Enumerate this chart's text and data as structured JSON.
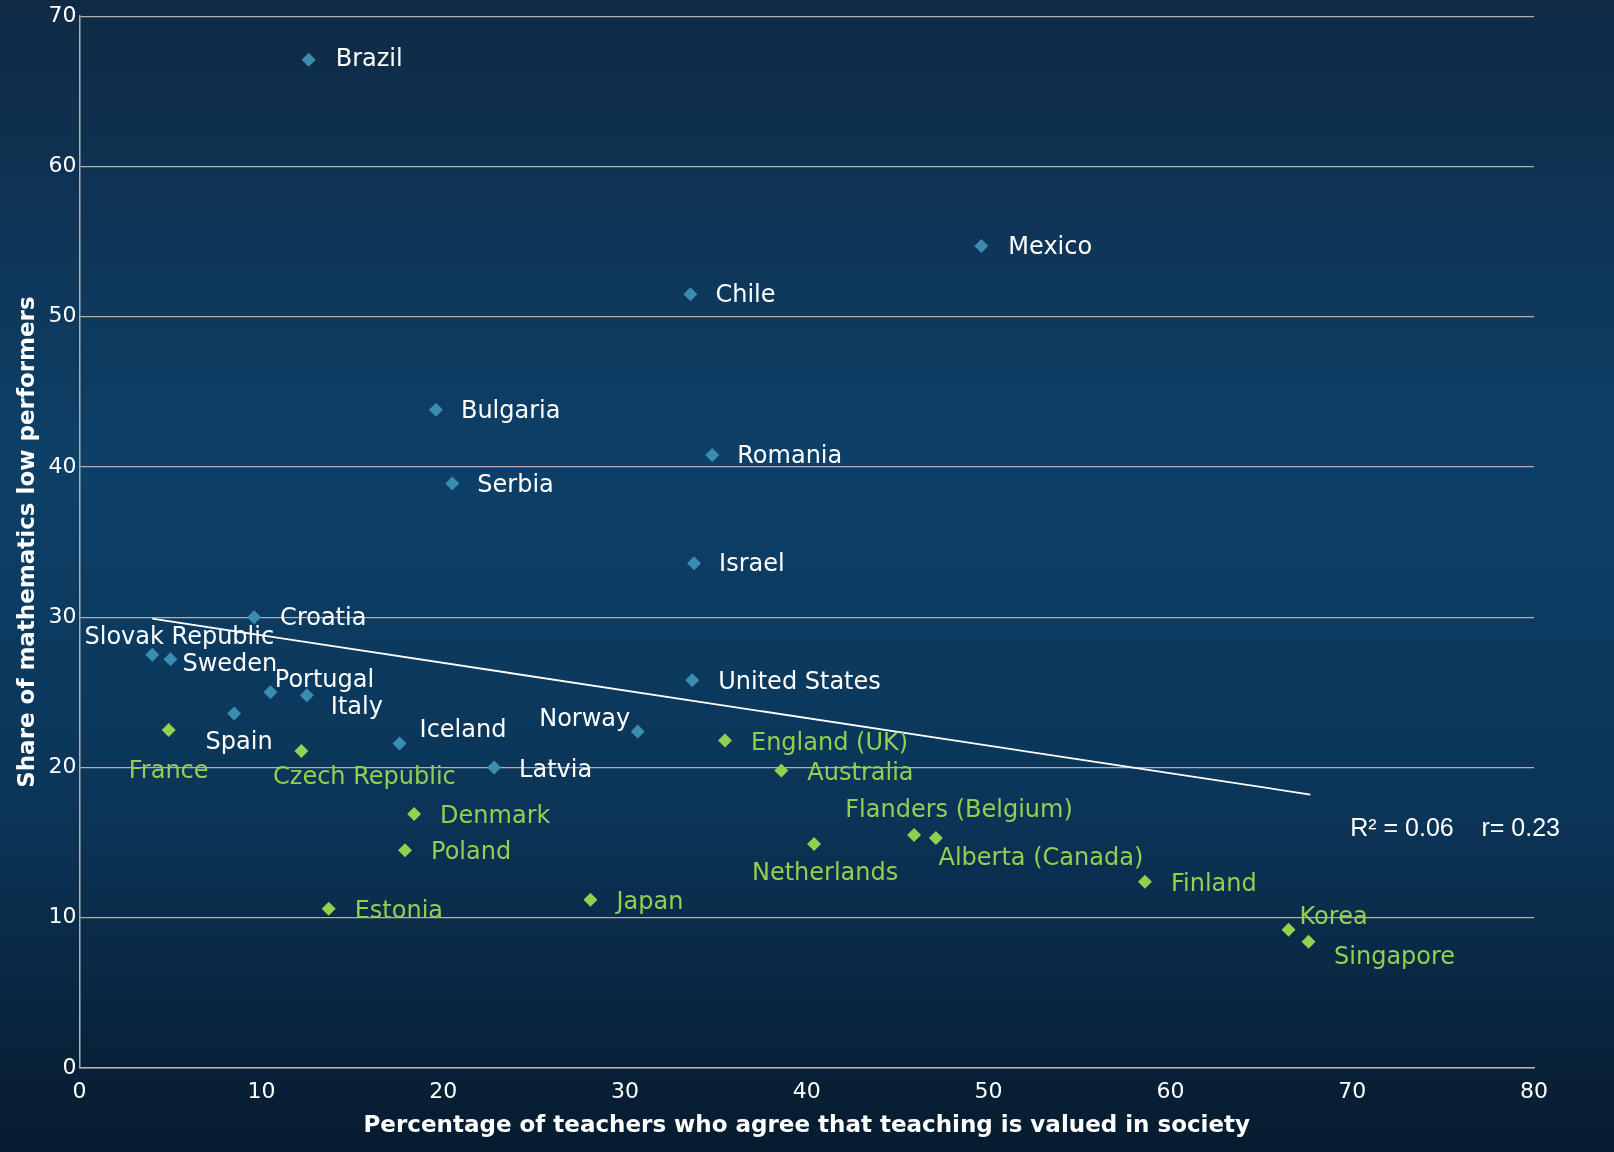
{
  "chart_data": {
    "type": "scatter",
    "xlabel": "Percentage of teachers who agree that teaching is valued in society",
    "ylabel": "Share of mathematics low performers",
    "xlim": [
      0,
      80
    ],
    "xticks": [
      0,
      10,
      20,
      30,
      40,
      50,
      60,
      70,
      80
    ],
    "ylim": [
      0,
      70
    ],
    "yticks": [
      0,
      10,
      20,
      30,
      40,
      50,
      60,
      70
    ],
    "grid": "y",
    "legend": false,
    "marker": "diamond",
    "series": [
      {
        "color": "#3a8db0",
        "x": [
          12.6,
          49.6,
          33.6,
          19.6,
          34.8,
          20.5,
          33.8,
          9.6,
          4.0,
          5.0,
          10.5,
          12.5,
          8.5,
          33.7,
          30.7,
          17.6,
          22.8
        ],
        "values": [
          67.1,
          54.7,
          51.5,
          43.8,
          40.8,
          38.9,
          33.6,
          30.0,
          27.5,
          27.2,
          25.0,
          24.8,
          23.6,
          25.8,
          22.4,
          21.6,
          20.0
        ]
      },
      {
        "color": "#92d050",
        "x": [
          4.9,
          12.2,
          35.5,
          38.6,
          18.4,
          17.9,
          13.7,
          28.1,
          40.4,
          45.9,
          47.1,
          58.6,
          66.5,
          67.6
        ],
        "values": [
          22.5,
          21.1,
          21.8,
          19.8,
          16.9,
          14.5,
          10.6,
          11.2,
          14.9,
          15.5,
          15.3,
          12.4,
          9.2,
          8.4
        ]
      },
      {
        "type": "line",
        "color": "#ffffff",
        "marker": "none",
        "x": [
          4.0,
          67.7
        ],
        "values": [
          29.9,
          18.2
        ]
      }
    ],
    "annotations": [
      {
        "text": "Brazil",
        "x": 12.6,
        "y": 67.1
      },
      {
        "text": "Mexico",
        "x": 49.6,
        "y": 54.7
      },
      {
        "text": "Chile",
        "x": 33.6,
        "y": 51.5
      },
      {
        "text": "Bulgaria",
        "x": 19.6,
        "y": 43.8
      },
      {
        "text": "Romania",
        "x": 34.8,
        "y": 40.8
      },
      {
        "text": "Serbia",
        "x": 20.5,
        "y": 38.9
      },
      {
        "text": "Israel",
        "x": 33.8,
        "y": 33.6
      },
      {
        "text": "Croatia",
        "x": 9.6,
        "y": 30.0
      },
      {
        "text": "Slovak Republic",
        "x": 4.0,
        "y": 27.5
      },
      {
        "text": "Sweden",
        "x": 5.0,
        "y": 27.2
      },
      {
        "text": "Portugal",
        "x": 10.5,
        "y": 25.0
      },
      {
        "text": "Italy",
        "x": 12.5,
        "y": 24.8
      },
      {
        "text": "Spain",
        "x": 8.5,
        "y": 23.6
      },
      {
        "text": "United States",
        "x": 33.7,
        "y": 25.8
      },
      {
        "text": "Norway",
        "x": 30.7,
        "y": 22.4
      },
      {
        "text": "Iceland",
        "x": 17.6,
        "y": 21.6
      },
      {
        "text": "Latvia",
        "x": 22.8,
        "y": 20.0
      },
      {
        "text": "France",
        "x": 4.9,
        "y": 22.5
      },
      {
        "text": "Czech Republic",
        "x": 12.2,
        "y": 21.1
      },
      {
        "text": "England (UK)",
        "x": 35.5,
        "y": 21.8
      },
      {
        "text": "Australia",
        "x": 38.6,
        "y": 19.8
      },
      {
        "text": "Denmark",
        "x": 18.4,
        "y": 16.9
      },
      {
        "text": "Poland",
        "x": 17.9,
        "y": 14.5
      },
      {
        "text": "Estonia",
        "x": 13.7,
        "y": 10.6
      },
      {
        "text": "Japan",
        "x": 28.1,
        "y": 11.2
      },
      {
        "text": "Netherlands",
        "x": 40.4,
        "y": 14.9
      },
      {
        "text": "Flanders (Belgium)",
        "x": 45.9,
        "y": 15.5
      },
      {
        "text": "Alberta (Canada)",
        "x": 47.1,
        "y": 15.3
      },
      {
        "text": "Finland",
        "x": 58.6,
        "y": 12.4
      },
      {
        "text": "Korea",
        "x": 66.5,
        "y": 9.2
      },
      {
        "text": "Singapore",
        "x": 67.6,
        "y": 8.4
      },
      "R² = 0.06    r= 0.23"
    ]
  }
}
